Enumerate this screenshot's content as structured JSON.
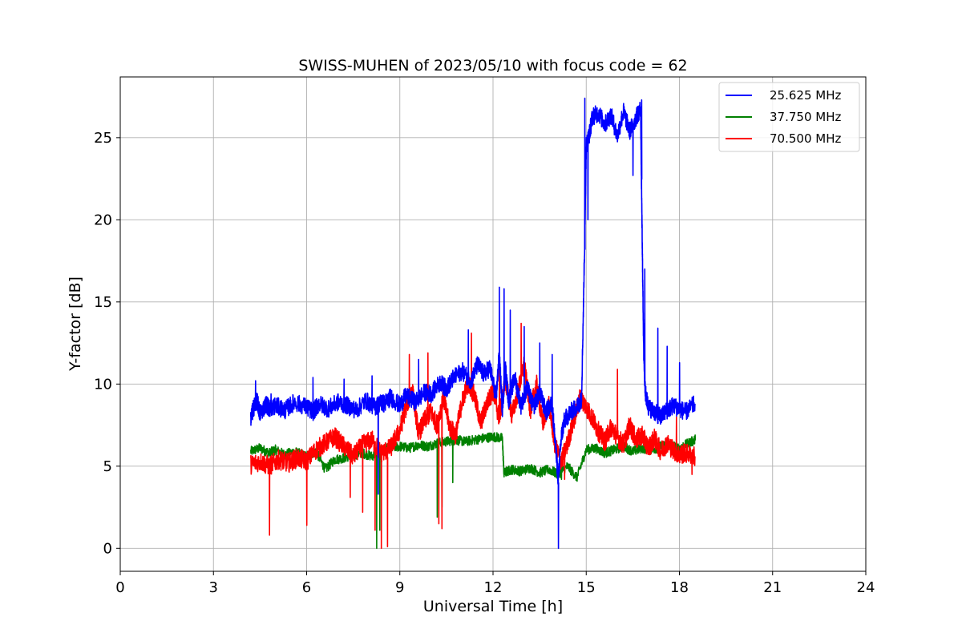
{
  "chart_data": {
    "type": "line",
    "title": "SWISS-MUHEN of 2023/05/10 with focus code = 62",
    "xlabel": "Universal Time [h]",
    "ylabel": "Y-factor [dB]",
    "xlim": [
      0,
      24
    ],
    "ylim": [
      -1.4,
      28.7
    ],
    "xticks": [
      "0",
      "3",
      "6",
      "9",
      "12",
      "15",
      "18",
      "21",
      "24"
    ],
    "yticks": [
      "0",
      "5",
      "10",
      "15",
      "20",
      "25"
    ],
    "xtick_values": [
      0,
      3,
      6,
      9,
      12,
      15,
      18,
      21,
      24
    ],
    "ytick_values": [
      0,
      5,
      10,
      15,
      20,
      25
    ],
    "grid": true,
    "legend_position": "top-right",
    "series": [
      {
        "name": "25.625 MHz",
        "color": "#0000ff",
        "x": [
          4.2,
          4.3,
          4.4,
          4.5,
          4.7,
          4.8,
          5.0,
          5.3,
          5.6,
          6.0,
          6.2,
          6.4,
          6.7,
          7.0,
          7.3,
          7.6,
          7.9,
          8.2,
          8.4,
          8.5,
          8.7,
          9.0,
          9.2,
          9.5,
          9.8,
          10.0,
          10.3,
          10.5,
          10.7,
          11.0,
          11.3,
          11.5,
          11.7,
          11.9,
          12.1,
          12.2,
          12.3,
          12.4,
          12.5,
          12.7,
          12.9,
          13.1,
          13.3,
          13.5,
          13.7,
          13.9,
          14.0,
          14.1,
          14.2,
          14.3,
          14.5,
          14.7,
          14.85,
          14.95,
          15.0,
          15.1,
          15.2,
          15.4,
          15.6,
          15.8,
          16.0,
          16.2,
          16.4,
          16.6,
          16.75,
          16.8,
          16.85,
          16.9,
          17.0,
          17.2,
          17.4,
          17.6,
          17.8,
          18.0,
          18.2,
          18.5
        ],
        "y": [
          7.9,
          8.6,
          9.0,
          8.2,
          8.8,
          8.5,
          8.7,
          8.4,
          8.9,
          8.6,
          8.3,
          8.8,
          8.5,
          8.9,
          8.7,
          8.4,
          9.0,
          8.6,
          8.9,
          8.8,
          9.2,
          8.7,
          9.3,
          8.9,
          9.5,
          9.4,
          10.1,
          9.7,
          10.3,
          10.8,
          10.2,
          11.2,
          10.6,
          11.0,
          9.2,
          11.8,
          8.5,
          10.9,
          9.0,
          10.4,
          8.7,
          9.8,
          8.6,
          9.5,
          8.3,
          8.8,
          6.5,
          4.2,
          6.8,
          7.8,
          8.3,
          8.6,
          9.1,
          18.5,
          24.5,
          25.2,
          26.3,
          26.5,
          25.8,
          26.4,
          25.1,
          26.6,
          25.4,
          26.2,
          26.8,
          19.0,
          12.0,
          9.5,
          8.6,
          8.3,
          8.0,
          8.4,
          8.7,
          8.5,
          8.3,
          8.8
        ],
        "spikes": [
          [
            4.35,
            10.2
          ],
          [
            4.85,
            9.4
          ],
          [
            6.2,
            10.4
          ],
          [
            7.2,
            10.3
          ],
          [
            8.1,
            10.5
          ],
          [
            8.3,
            3.3
          ],
          [
            9.6,
            11.5
          ],
          [
            11.2,
            13.3
          ],
          [
            12.2,
            15.9
          ],
          [
            12.35,
            15.8
          ],
          [
            12.55,
            14.5
          ],
          [
            13.0,
            13.5
          ],
          [
            13.5,
            12.5
          ],
          [
            13.9,
            11.8
          ],
          [
            14.1,
            0.0
          ],
          [
            14.95,
            27.4
          ],
          [
            15.05,
            20.0
          ],
          [
            16.5,
            22.7
          ],
          [
            16.78,
            27.3
          ],
          [
            16.88,
            17.0
          ],
          [
            17.3,
            13.4
          ],
          [
            17.6,
            12.3
          ],
          [
            18.0,
            11.3
          ]
        ]
      },
      {
        "name": "37.750 MHz",
        "color": "#008000",
        "x": [
          4.2,
          4.5,
          4.8,
          5.0,
          5.3,
          5.6,
          6.0,
          6.3,
          6.6,
          6.9,
          7.2,
          7.5,
          7.8,
          8.1,
          8.4,
          8.7,
          9.0,
          9.3,
          9.6,
          9.9,
          10.2,
          10.5,
          10.8,
          11.1,
          11.4,
          11.7,
          12.0,
          12.3,
          12.35,
          12.6,
          12.9,
          13.2,
          13.5,
          13.8,
          14.1,
          14.4,
          14.7,
          15.0,
          15.3,
          15.6,
          15.9,
          16.2,
          16.5,
          16.8,
          17.1,
          17.4,
          17.7,
          18.0,
          18.3,
          18.5
        ],
        "y": [
          5.9,
          6.1,
          5.8,
          6.0,
          5.7,
          5.9,
          5.6,
          5.9,
          4.8,
          5.4,
          5.5,
          5.7,
          5.8,
          5.6,
          6.0,
          6.1,
          6.2,
          6.1,
          6.3,
          6.2,
          6.4,
          6.5,
          6.6,
          6.5,
          6.6,
          6.7,
          6.8,
          6.7,
          4.6,
          4.8,
          4.7,
          4.9,
          4.6,
          4.8,
          4.5,
          5.0,
          4.3,
          6.0,
          6.1,
          5.8,
          6.0,
          6.2,
          5.9,
          6.1,
          6.0,
          6.2,
          6.3,
          6.1,
          6.4,
          6.6
        ],
        "spikes": [
          [
            8.25,
            0.0
          ],
          [
            8.35,
            1.1
          ],
          [
            10.2,
            1.9
          ],
          [
            10.35,
            2.5
          ],
          [
            10.7,
            4.0
          ],
          [
            14.2,
            4.2
          ],
          [
            18.5,
            6.9
          ]
        ]
      },
      {
        "name": "70.500 MHz",
        "color": "#ff0000",
        "x": [
          4.2,
          4.5,
          4.8,
          5.1,
          5.4,
          5.7,
          6.0,
          6.3,
          6.6,
          6.9,
          7.2,
          7.5,
          7.8,
          8.1,
          8.4,
          8.7,
          9.0,
          9.2,
          9.4,
          9.6,
          9.8,
          10.0,
          10.2,
          10.4,
          10.6,
          10.8,
          11.0,
          11.2,
          11.4,
          11.6,
          11.8,
          12.0,
          12.2,
          12.4,
          12.6,
          12.8,
          13.0,
          13.2,
          13.4,
          13.6,
          13.8,
          14.0,
          14.2,
          14.4,
          14.6,
          14.8,
          15.0,
          15.2,
          15.4,
          15.6,
          15.8,
          16.0,
          16.2,
          16.4,
          16.6,
          16.8,
          17.0,
          17.2,
          17.4,
          17.6,
          17.8,
          18.0,
          18.2,
          18.5
        ],
        "y": [
          5.1,
          5.3,
          5.0,
          5.4,
          5.2,
          5.5,
          5.3,
          6.0,
          6.4,
          6.8,
          6.2,
          5.6,
          6.3,
          6.6,
          5.8,
          6.1,
          7.2,
          8.6,
          9.7,
          7.0,
          7.8,
          8.3,
          7.5,
          9.2,
          7.4,
          6.9,
          8.9,
          10.1,
          9.3,
          7.6,
          8.8,
          9.6,
          7.9,
          10.3,
          8.1,
          9.5,
          11.2,
          8.4,
          10.0,
          7.6,
          8.8,
          6.2,
          5.3,
          6.4,
          7.8,
          9.2,
          8.6,
          7.9,
          7.1,
          6.5,
          7.4,
          6.8,
          6.3,
          7.5,
          6.6,
          6.9,
          6.1,
          6.7,
          5.9,
          6.4,
          6.0,
          5.7,
          5.8,
          5.6
        ],
        "spikes": [
          [
            4.8,
            0.8
          ],
          [
            6.0,
            1.4
          ],
          [
            7.4,
            3.1
          ],
          [
            7.8,
            2.2
          ],
          [
            8.2,
            1.1
          ],
          [
            8.4,
            0.0
          ],
          [
            8.6,
            0.1
          ],
          [
            9.3,
            11.8
          ],
          [
            9.9,
            11.9
          ],
          [
            10.25,
            1.5
          ],
          [
            10.35,
            1.2
          ],
          [
            11.3,
            13.1
          ],
          [
            12.2,
            11.7
          ],
          [
            12.9,
            13.7
          ],
          [
            14.3,
            4.2
          ],
          [
            16.0,
            10.9
          ],
          [
            17.9,
            8.0
          ],
          [
            18.4,
            4.5
          ]
        ]
      }
    ]
  }
}
